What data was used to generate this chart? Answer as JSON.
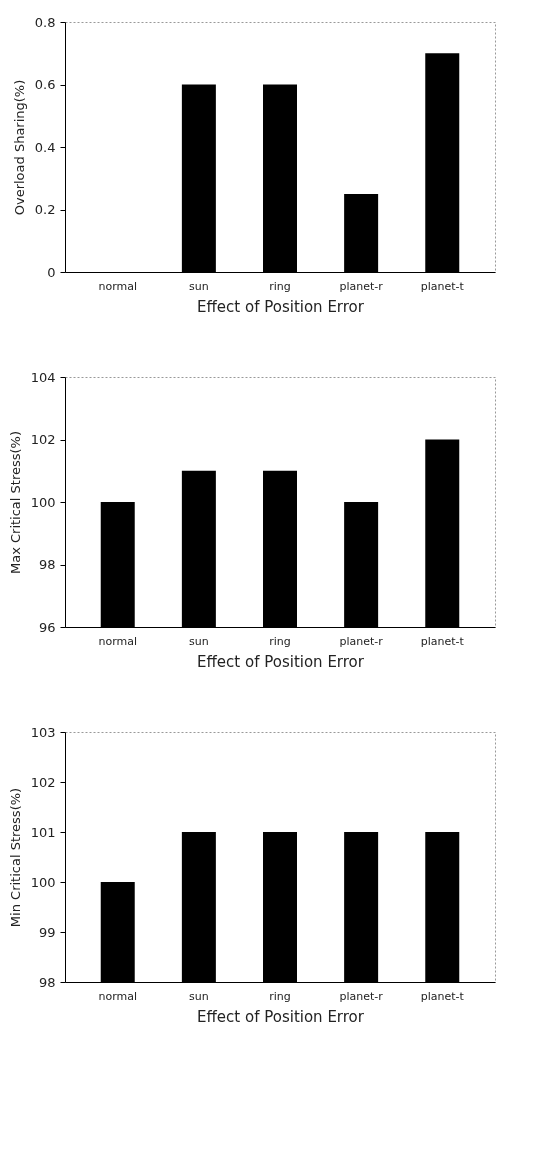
{
  "chart_data": [
    {
      "type": "bar",
      "xlabel": "Effect of Position Error",
      "ylabel": "Overload Sharing(%)",
      "categories": [
        "normal",
        "sun",
        "ring",
        "planet-r",
        "planet-t"
      ],
      "values": [
        0,
        0.6,
        0.6,
        0.25,
        0.7
      ],
      "color": "#000000",
      "ylim": [
        0,
        0.8
      ],
      "yticks": [
        {
          "value": 0,
          "label": "0"
        },
        0.2,
        0.4,
        0.6,
        0.8
      ]
    },
    {
      "type": "bar",
      "xlabel": "Effect of Position Error",
      "ylabel": "Max Critical Stress(%)",
      "categories": [
        "normal",
        "sun",
        "ring",
        "planet-r",
        "planet-t"
      ],
      "values": [
        100,
        101,
        101,
        100,
        102
      ],
      "color": "#000000",
      "ylim": [
        96,
        104
      ],
      "yticks": [
        96,
        98,
        100,
        102,
        104
      ]
    },
    {
      "type": "bar",
      "xlabel": "Effect of Position Error",
      "ylabel": "Min Critical Stress(%)",
      "categories": [
        "normal",
        "sun",
        "ring",
        "planet-r",
        "planet-t"
      ],
      "values": [
        100,
        101,
        101,
        101,
        101
      ],
      "color": "#000000",
      "ylim": [
        98,
        103
      ],
      "yticks": [
        98,
        99,
        100,
        101,
        102,
        103
      ]
    }
  ]
}
